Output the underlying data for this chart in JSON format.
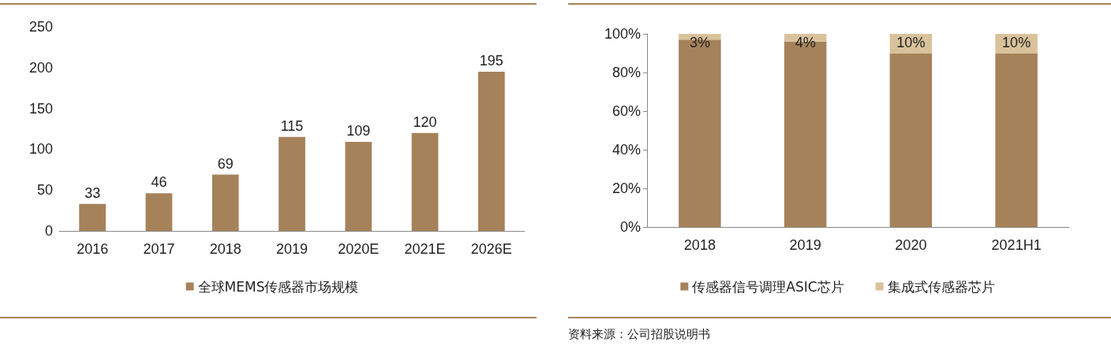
{
  "chart_data": [
    {
      "type": "bar",
      "categories": [
        "2016",
        "2017",
        "2018",
        "2019",
        "2020E",
        "2021E",
        "2026E"
      ],
      "series": [
        {
          "name": "全球MEMS传感器市场规模",
          "color": "#a6825a",
          "values": [
            33,
            46,
            69,
            115,
            109,
            120,
            195
          ]
        }
      ],
      "ylim": [
        0,
        250
      ],
      "yticks": [
        0,
        50,
        100,
        150,
        200,
        250
      ],
      "data_labels": true,
      "grid": false,
      "legend": "bottom"
    },
    {
      "type": "bar",
      "categories": [
        "2018",
        "2019",
        "2020",
        "2021H1"
      ],
      "stacked": true,
      "series": [
        {
          "name": "传感器信号调理ASIC芯片",
          "color": "#a6825a",
          "values": [
            97,
            96,
            90,
            90
          ]
        },
        {
          "name": "集成式传感器芯片",
          "color": "#d9c29b",
          "values": [
            3,
            4,
            10,
            10
          ],
          "value_labels": [
            "3%",
            "4%",
            "10%",
            "10%"
          ]
        }
      ],
      "ylim": [
        0,
        100
      ],
      "yticks": [
        {
          "value": 0,
          "label": "0%"
        },
        {
          "value": 20,
          "label": "20%"
        },
        {
          "value": 40,
          "label": "40%"
        },
        {
          "value": 60,
          "label": "60%"
        },
        {
          "value": 80,
          "label": "80%"
        },
        {
          "value": 100,
          "label": "100%"
        }
      ],
      "grid": false,
      "legend": "bottom",
      "annotations": [
        "资料来源：公司招股说明书"
      ]
    }
  ]
}
